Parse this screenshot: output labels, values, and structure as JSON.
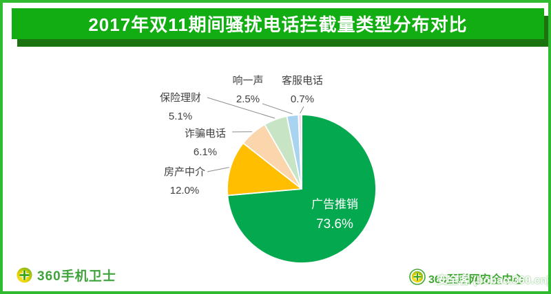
{
  "header": {
    "title": "2017年双11期间骚扰电话拦截量类型分布对比"
  },
  "chart_data": {
    "type": "pie",
    "title": "2017年双11期间骚扰电话拦截量类型分布对比",
    "unit": "percent",
    "direction": "clockwise",
    "start_angle": "top",
    "legend_position": "none",
    "slices": [
      {
        "label": "广告推销",
        "value": 73.6,
        "display": "73.6%",
        "color": "#04A94F",
        "label_position": "inside"
      },
      {
        "label": "房产中介",
        "value": 12.0,
        "display": "12.0%",
        "color": "#FFBE00",
        "label_position": "outside"
      },
      {
        "label": "诈骗电话",
        "value": 6.1,
        "display": "6.1%",
        "color": "#FBD5AB",
        "label_position": "outside"
      },
      {
        "label": "保险理财",
        "value": 5.1,
        "display": "5.1%",
        "color": "#C7E5C5",
        "label_position": "outside"
      },
      {
        "label": "响一声",
        "value": 2.5,
        "display": "2.5%",
        "color": "#A8D3F1",
        "label_position": "outside"
      },
      {
        "label": "客服电话",
        "value": 0.7,
        "display": "0.7%",
        "color": "#F4DCF0",
        "label_position": "outside"
      }
    ]
  },
  "footer": {
    "left_brand": "360手机卫士",
    "right_brand": "360互联网安全中心",
    "watermark": "安全客 (bobao.360.cn)"
  },
  "colors": {
    "banner_green": "#12AD12",
    "banner_shadow": "#1A730E",
    "page_border": "#2FBA2F",
    "label_text": "#404040",
    "leader_line": "#8C8C8C",
    "brand_green": "#3FA33C",
    "slice_stroke": "#FFFFFF"
  }
}
